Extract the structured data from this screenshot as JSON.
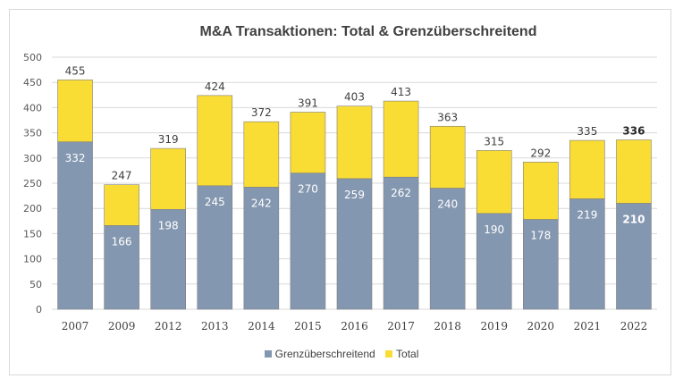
{
  "colors": {
    "grenz": "#8497b0",
    "total": "#f9dd35",
    "grid": "#d9d9d9",
    "bar_edge": "#7f7f7f"
  },
  "chart_data": {
    "type": "bar",
    "title": "M&A Transaktionen: Total & Grenzüberschreitend",
    "xlabel": "",
    "ylabel": "",
    "ylim": [
      0,
      500
    ],
    "yticks": [
      0,
      50,
      100,
      150,
      200,
      250,
      300,
      350,
      400,
      450,
      500
    ],
    "grid": true,
    "legend_position": "bottom",
    "categories": [
      "2007",
      "2009",
      "2012",
      "2013",
      "2014",
      "2015",
      "2016",
      "2017",
      "2018",
      "2019",
      "2020",
      "2021",
      "2022"
    ],
    "series": [
      {
        "name": "Grenzüberschreitend",
        "values": [
          332,
          166,
          198,
          245,
          242,
          270,
          259,
          262,
          240,
          190,
          178,
          219,
          210
        ]
      },
      {
        "name": "Total",
        "values": [
          455,
          247,
          319,
          424,
          372,
          391,
          403,
          413,
          363,
          315,
          292,
          335,
          336
        ]
      }
    ],
    "bold_category": "2022"
  }
}
